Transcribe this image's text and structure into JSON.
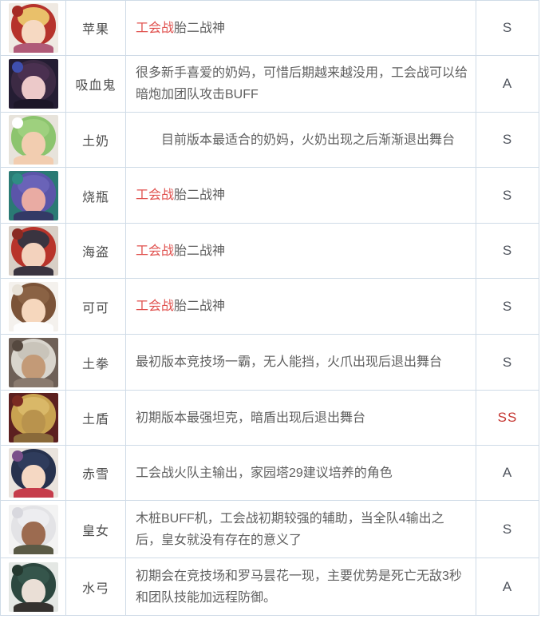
{
  "table": {
    "border_color": "#cfdbe7",
    "name_color": "#4d4d4d",
    "desc_color": "#5f5f5f",
    "inline_red_color": "#e0514e",
    "rating_color": "#50555e",
    "rating_red_color": "#c53631"
  },
  "rows": [
    {
      "name": "苹果",
      "desc_red": "工会战",
      "desc": "胎二战神",
      "rating": "S",
      "rating_red": false,
      "avatar": {
        "bg": "#efe9e2",
        "hair": "#b6332c",
        "fringe": "#e9c06a",
        "skin": "#f6d9c2",
        "accent": "#a52b24",
        "torso": "#b05a78"
      }
    },
    {
      "name": "吸血鬼",
      "desc": "很多新手喜爱的奶妈，可惜后期越来越没用，工会战可以给暗炮加团队攻击BUFF",
      "rating": "A",
      "rating_red": false,
      "avatar": {
        "bg": "#241d33",
        "hair": "#3c2a44",
        "fringe": "#4a3050",
        "skin": "#ecc9c9",
        "accent": "#3f4fae",
        "torso": "#1c1628"
      }
    },
    {
      "name": "土奶",
      "desc": "　　目前版本最适合的奶妈，火奶出现之后渐渐退出舞台",
      "rating": "S",
      "rating_red": false,
      "avatar": {
        "bg": "#e7e3db",
        "hair": "#8cc46e",
        "fringe": "#9ed07e",
        "skin": "#f2cdb0",
        "accent": "#ffffff",
        "torso": "#f2cdb0"
      }
    },
    {
      "name": "烧瓶",
      "desc_red": "工会战",
      "desc": "胎二战神",
      "rating": "S",
      "rating_red": false,
      "avatar": {
        "bg": "#2a7a74",
        "hair": "#5b55a9",
        "fringe": "#6a63b8",
        "skin": "#e9aba3",
        "accent": "#2f8d84",
        "torso": "#333a66"
      }
    },
    {
      "name": "海盗",
      "desc_red": "工会战",
      "desc": "胎二战神",
      "rating": "S",
      "rating_red": false,
      "avatar": {
        "bg": "#d8cfc6",
        "hair": "#b8342b",
        "fringe": "#3a3440",
        "skin": "#f3d2bd",
        "accent": "#8a2a22",
        "torso": "#3a3440"
      }
    },
    {
      "name": "可可",
      "desc_red": "工会战",
      "desc": "胎二战神",
      "rating": "S",
      "rating_red": false,
      "avatar": {
        "bg": "#f4f1ed",
        "hair": "#7b5338",
        "fringe": "#8a6244",
        "skin": "#f6d7bd",
        "accent": "#e8e2d8",
        "torso": "#fdfdfd"
      }
    },
    {
      "name": "土拳",
      "desc": "最初版本竞技场一霸，无人能挡，火爪出现后退出舞台",
      "rating": "S",
      "rating_red": false,
      "avatar": {
        "bg": "#6e6057",
        "hair": "#d9d5cd",
        "fringe": "#c9c4ba",
        "skin": "#c39a77",
        "accent": "#55483f",
        "torso": "#8a7a6e"
      }
    },
    {
      "name": "土盾",
      "desc": "初期版本最强坦克，暗盾出现后退出舞台",
      "rating": "SS",
      "rating_red": true,
      "avatar": {
        "bg": "#5c2020",
        "hair": "#c9a351",
        "fringe": "#d9b868",
        "skin": "#b9934d",
        "accent": "#7a2a22",
        "torso": "#8a6a3a"
      }
    },
    {
      "name": "赤雪",
      "desc": "工会战火队主输出，家园塔29建议培养的角色",
      "rating": "A",
      "rating_red": false,
      "avatar": {
        "bg": "#e9e3dd",
        "hair": "#27324e",
        "fringe": "#2f3c5c",
        "skin": "#f5d8c3",
        "accent": "#7a4f8a",
        "torso": "#c63c4a"
      }
    },
    {
      "name": "皇女",
      "desc": "木桩BUFF机，工会战初期较强的辅助，当全队4输出之后，皇女就没有存在的意义了",
      "rating": "S",
      "rating_red": false,
      "avatar": {
        "bg": "#f3f3f3",
        "hair": "#e3e3e6",
        "fringe": "#ededf0",
        "skin": "#9c6b50",
        "accent": "#d8d8de",
        "torso": "#5a5a46"
      }
    },
    {
      "name": "水弓",
      "desc": "初期会在竞技场和罗马昙花一现，主要优势是死亡无敌3秒和团队技能加远程防御。",
      "rating": "A",
      "rating_red": false,
      "avatar": {
        "bg": "#e4e7e4",
        "hair": "#2c473f",
        "fringe": "#35554b",
        "skin": "#eadfd6",
        "accent": "#24382f",
        "torso": "#35322f"
      }
    }
  ]
}
